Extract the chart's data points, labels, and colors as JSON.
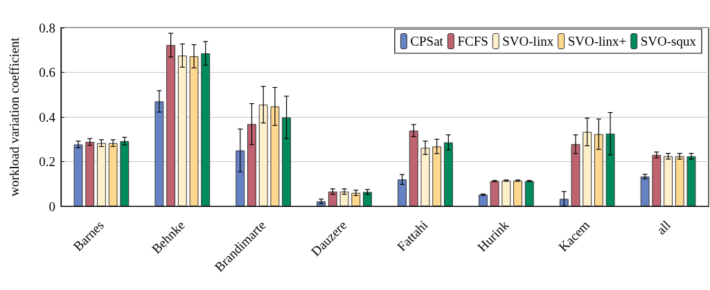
{
  "chart_data": {
    "type": "bar",
    "ylabel": "workload variation coefficient",
    "categories": [
      "Barnes",
      "Behnke",
      "Brandimarte",
      "Dauzere",
      "Fattahi",
      "Hurink",
      "Kacem",
      "all"
    ],
    "series": [
      {
        "name": "CPSat",
        "color": "#6482c4",
        "values": [
          0.277,
          0.47,
          0.25,
          0.022,
          0.12,
          0.052,
          0.033,
          0.133
        ],
        "errors": [
          0.015,
          0.048,
          0.096,
          0.01,
          0.022,
          0.003,
          0.033,
          0.01
        ]
      },
      {
        "name": "FCFS",
        "color": "#c06370",
        "values": [
          0.288,
          0.722,
          0.368,
          0.066,
          0.339,
          0.113,
          0.278,
          0.23
        ],
        "errors": [
          0.015,
          0.053,
          0.092,
          0.012,
          0.027,
          0.003,
          0.042,
          0.013
        ]
      },
      {
        "name": "SVO-linx",
        "color": "#fff0cc",
        "values": [
          0.283,
          0.675,
          0.455,
          0.066,
          0.262,
          0.115,
          0.333,
          0.224
        ],
        "errors": [
          0.015,
          0.052,
          0.082,
          0.012,
          0.03,
          0.003,
          0.062,
          0.013
        ]
      },
      {
        "name": "SVO-linx+",
        "color": "#ffd890",
        "values": [
          0.283,
          0.672,
          0.447,
          0.06,
          0.268,
          0.115,
          0.323,
          0.224
        ],
        "errors": [
          0.015,
          0.052,
          0.085,
          0.012,
          0.032,
          0.003,
          0.068,
          0.013
        ]
      },
      {
        "name": "SVO-squx",
        "color": "#008b5e",
        "values": [
          0.292,
          0.685,
          0.398,
          0.064,
          0.286,
          0.113,
          0.325,
          0.224
        ],
        "errors": [
          0.017,
          0.053,
          0.095,
          0.011,
          0.034,
          0.003,
          0.095,
          0.013
        ]
      }
    ],
    "ylim": [
      0,
      0.8
    ],
    "yticks": [
      0,
      0.2,
      0.4,
      0.6,
      0.8
    ],
    "grid": "y",
    "legend": "top right"
  }
}
